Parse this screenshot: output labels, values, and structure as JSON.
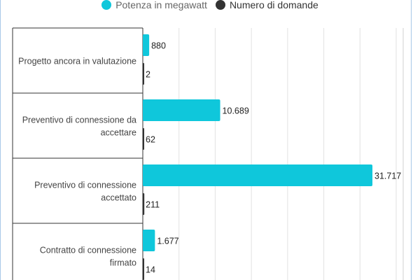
{
  "chart_data": {
    "type": "bar",
    "orientation": "horizontal",
    "categories": [
      "Progetto ancora in valutazione",
      "Preventivo di connessione da accettare",
      "Preventivo di connessione accettato",
      "Contratto di connessione firmato"
    ],
    "category_lines": [
      [
        "Progetto ancora in valutazione"
      ],
      [
        "Preventivo di connessione da",
        "accettare"
      ],
      [
        "Preventivo di connessione",
        "accettato"
      ],
      [
        "Contratto di connessione",
        "firmato"
      ]
    ],
    "series": [
      {
        "name": "Potenza in megawatt",
        "color": "#0fc7db",
        "values": [
          880,
          10689,
          31717,
          1677
        ],
        "labels": [
          "880",
          "10.689",
          "31.717",
          "1.677"
        ]
      },
      {
        "name": "Numero di domande",
        "color": "#333333",
        "values": [
          2,
          62,
          211,
          14
        ],
        "labels": [
          "2",
          "62",
          "211",
          "14"
        ]
      }
    ],
    "xlim": [
      0,
      35000
    ],
    "grid": true,
    "legend_position": "top"
  }
}
